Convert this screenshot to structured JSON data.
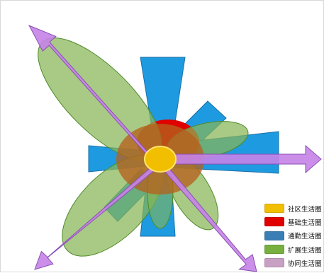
{
  "legend": {
    "items": [
      {
        "key": "community",
        "label": "社区生活圈",
        "color": "#f2bf00"
      },
      {
        "key": "basic",
        "label": "基础生活圈",
        "color": "#e00000"
      },
      {
        "key": "commute",
        "label": "通勤生活圈",
        "color": "#3a7eb5"
      },
      {
        "key": "extended",
        "label": "扩展生活圈",
        "color": "#77b03f"
      },
      {
        "key": "coop",
        "label": "协同生活圈",
        "color": "#c8a0c4"
      }
    ]
  },
  "colors": {
    "commute_fill": "#1e9be0",
    "extended_fill": "#86b555",
    "coop_arrow": "#c583e8",
    "core_ring": "#b5621e",
    "basic_fill": "#e00000",
    "community_fill": "#f2bf00"
  }
}
